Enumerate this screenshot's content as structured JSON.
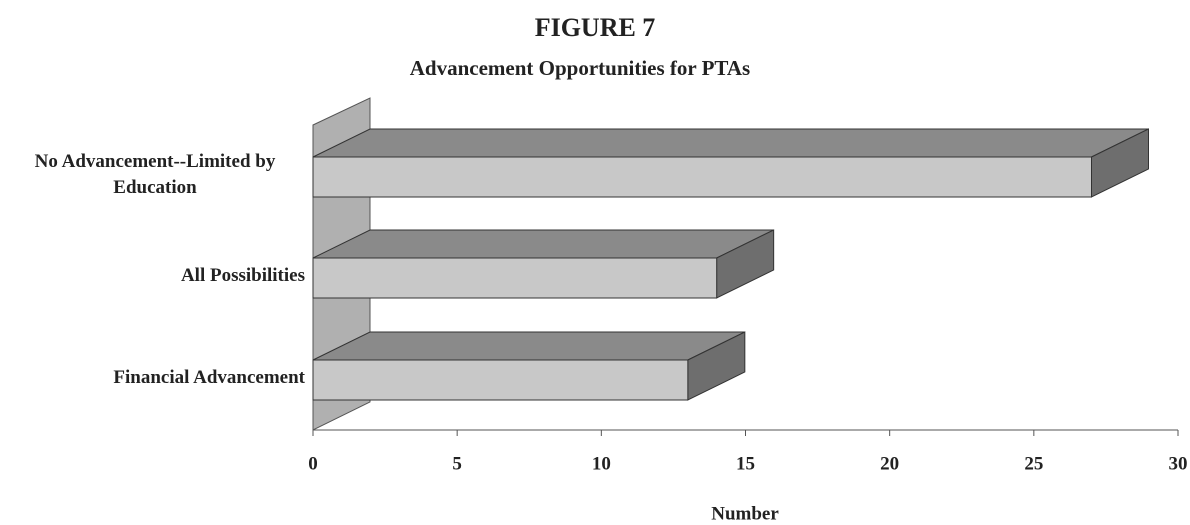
{
  "chart_data": {
    "type": "bar3d_horizontal",
    "title": "FIGURE 7",
    "subtitle": "Advancement Opportunities for PTAs",
    "categories": [
      "No Advancement--Limited by Education",
      "All Possibilities",
      "Financial Advancement"
    ],
    "values": [
      27,
      14,
      13
    ],
    "color": "#c8c8c8",
    "xlim": [
      0,
      30
    ],
    "xticks": [
      0,
      5,
      10,
      15,
      20,
      25,
      30
    ],
    "xlabel": "Number"
  }
}
